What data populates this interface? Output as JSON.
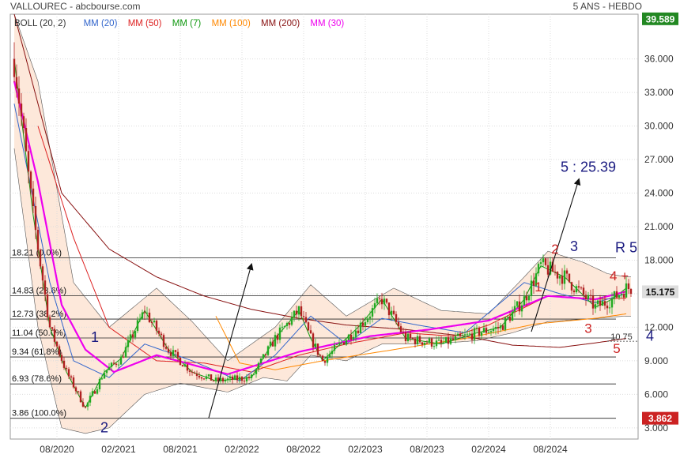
{
  "header": {
    "title": "VALLOUREC - abcbourse.com",
    "period": "5 ANS - HEBDO"
  },
  "legend": [
    {
      "label": "BOLL (20, 2)",
      "color": "#333333"
    },
    {
      "label": "MM (20)",
      "color": "#3366cc"
    },
    {
      "label": "MM (50)",
      "color": "#dd2222"
    },
    {
      "label": "MM (7)",
      "color": "#119911"
    },
    {
      "label": "MM (100)",
      "color": "#ff8800"
    },
    {
      "label": "MM (200)",
      "color": "#881111"
    },
    {
      "label": "MM (30)",
      "color": "#ee00ee"
    }
  ],
  "price_labels": {
    "high": "39.589",
    "last": "15.175",
    "low": "3.862"
  },
  "colors": {
    "bull": "#22aa22",
    "bear": "#b02020",
    "bollinger_fill": "#fde4d4",
    "high_badge": "#228822",
    "last_badge": "#dddddd",
    "low_badge": "#cc2222",
    "fib": "#222222"
  },
  "chart_data": {
    "type": "candlestick",
    "title": "VALLOUREC - abcbourse.com",
    "subtitle": "5 ANS - HEBDO",
    "x_ticks": [
      "08/2020",
      "02/2021",
      "08/2021",
      "02/2022",
      "08/2022",
      "02/2023",
      "08/2023",
      "02/2024",
      "08/2024"
    ],
    "y_ticks": [
      "3.000",
      "6.000",
      "9.000",
      "12.000",
      "15.000",
      "18.000",
      "21.000",
      "24.000",
      "27.000",
      "30.000",
      "33.000",
      "36.000"
    ],
    "ylim": [
      2,
      40
    ],
    "fib_levels": [
      {
        "label": "18.21  (0.0%)",
        "value": 18.21
      },
      {
        "label": "14.83  (23.6%)",
        "value": 14.83
      },
      {
        "label": "12.73  (38.2%)",
        "value": 12.73
      },
      {
        "label": "11.04  (50.0%)",
        "value": 11.04
      },
      {
        "label": "9.34  (61.8%)",
        "value": 9.34
      },
      {
        "label": "6.93  (78.6%)",
        "value": 6.93
      },
      {
        "label": "3.86  (100.0%)",
        "value": 3.86
      }
    ],
    "price_axis_labels": {
      "high": 39.589,
      "last": 15.175,
      "low": 3.862
    },
    "ma_anchors": {
      "MM (30)": [
        [
          0,
          34
        ],
        [
          10,
          25
        ],
        [
          20,
          14
        ],
        [
          30,
          10
        ],
        [
          42,
          8
        ],
        [
          60,
          9.5
        ],
        [
          90,
          7.8
        ],
        [
          120,
          9.8
        ],
        [
          150,
          11.2
        ],
        [
          175,
          11.8
        ],
        [
          200,
          12.6
        ],
        [
          225,
          14.8
        ],
        [
          245,
          14.5
        ],
        [
          258,
          15.2
        ]
      ],
      "MM (20)": [
        [
          0,
          32
        ],
        [
          15,
          16
        ],
        [
          25,
          9
        ],
        [
          40,
          7.5
        ],
        [
          55,
          10.5
        ],
        [
          75,
          9
        ],
        [
          95,
          7.2
        ],
        [
          110,
          9.5
        ],
        [
          125,
          13
        ],
        [
          140,
          10.5
        ],
        [
          155,
          12.8
        ],
        [
          170,
          12.2
        ],
        [
          190,
          11.5
        ],
        [
          215,
          16
        ],
        [
          230,
          15
        ],
        [
          245,
          14.2
        ],
        [
          258,
          15
        ]
      ],
      "MM (50)": [
        [
          10,
          30
        ],
        [
          25,
          20
        ],
        [
          40,
          12
        ],
        [
          60,
          9
        ],
        [
          80,
          8.8
        ],
        [
          100,
          8
        ],
        [
          120,
          9.5
        ],
        [
          140,
          10.5
        ],
        [
          165,
          11.5
        ],
        [
          185,
          11.2
        ],
        [
          200,
          12.2
        ],
        [
          225,
          14.8
        ],
        [
          245,
          14.5
        ],
        [
          258,
          14.6
        ]
      ],
      "MM (7)": [
        [
          0,
          36
        ],
        [
          8,
          22
        ],
        [
          15,
          12
        ],
        [
          22,
          8
        ],
        [
          30,
          4.8
        ],
        [
          38,
          8
        ],
        [
          45,
          9.2
        ],
        [
          55,
          13.5
        ],
        [
          65,
          10
        ],
        [
          75,
          8
        ],
        [
          85,
          7.2
        ],
        [
          100,
          7.5
        ],
        [
          110,
          11
        ],
        [
          120,
          13.5
        ],
        [
          125,
          11
        ],
        [
          130,
          9
        ],
        [
          145,
          12
        ],
        [
          155,
          14.5
        ],
        [
          165,
          11
        ],
        [
          180,
          10.5
        ],
        [
          195,
          11.5
        ],
        [
          205,
          12
        ],
        [
          215,
          14.5
        ],
        [
          222,
          17.5
        ],
        [
          232,
          16.5
        ],
        [
          245,
          13.8
        ],
        [
          252,
          14.5
        ],
        [
          258,
          15.5
        ]
      ],
      "MM (100)": [
        [
          85,
          13
        ],
        [
          95,
          8.8
        ],
        [
          110,
          8.2
        ],
        [
          130,
          9
        ],
        [
          160,
          10
        ],
        [
          190,
          11
        ],
        [
          220,
          12.3
        ],
        [
          245,
          12.8
        ],
        [
          258,
          13.2
        ]
      ],
      "MM (200)": [
        [
          0,
          40
        ],
        [
          20,
          24
        ],
        [
          40,
          19
        ],
        [
          60,
          16.5
        ],
        [
          80,
          14.8
        ],
        [
          100,
          13.6
        ],
        [
          120,
          12.8
        ],
        [
          140,
          12.2
        ],
        [
          165,
          11.8
        ],
        [
          190,
          11.2
        ],
        [
          210,
          10.4
        ],
        [
          230,
          10.2
        ],
        [
          245,
          10.6
        ],
        [
          258,
          11
        ]
      ],
      "BOLL upper": [
        [
          0,
          40
        ],
        [
          10,
          34
        ],
        [
          25,
          16
        ],
        [
          40,
          12
        ],
        [
          60,
          15.5
        ],
        [
          75,
          12.5
        ],
        [
          90,
          9
        ],
        [
          110,
          12
        ],
        [
          125,
          15.8
        ],
        [
          140,
          13
        ],
        [
          160,
          15.5
        ],
        [
          180,
          13.5
        ],
        [
          200,
          13.2
        ],
        [
          215,
          16.5
        ],
        [
          225,
          18.8
        ],
        [
          240,
          17.8
        ],
        [
          250,
          16.8
        ],
        [
          258,
          16.5
        ]
      ],
      "BOLL lower": [
        [
          0,
          28
        ],
        [
          10,
          12
        ],
        [
          20,
          3
        ],
        [
          30,
          2.5
        ],
        [
          40,
          3
        ],
        [
          55,
          6
        ],
        [
          70,
          7
        ],
        [
          90,
          6.2
        ],
        [
          105,
          7.5
        ],
        [
          115,
          7.2
        ],
        [
          125,
          9.5
        ],
        [
          140,
          9
        ],
        [
          155,
          10.5
        ],
        [
          175,
          10.5
        ],
        [
          195,
          10.8
        ],
        [
          210,
          11.5
        ],
        [
          225,
          12.5
        ],
        [
          245,
          12.8
        ],
        [
          258,
          13
        ]
      ]
    },
    "trend_arrows": [
      {
        "from": [
          82,
          3.9
        ],
        "to": [
          100,
          17.6
        ]
      },
      {
        "from": [
          218,
          11.6
        ],
        "to": [
          238,
          25.2
        ]
      }
    ],
    "annotations": [
      {
        "text": "5 : 25.39",
        "x": 242,
        "y": 25.9
      },
      {
        "text": "2",
        "x": 228,
        "y": 18.6
      },
      {
        "text": "3",
        "x": 236,
        "y": 18.8
      },
      {
        "text": "R 5",
        "x": 258,
        "y": 18.7
      },
      {
        "text": "1",
        "x": 221,
        "y": 15.2
      },
      {
        "text": "4 +",
        "x": 255,
        "y": 16.2
      },
      {
        "text": "3",
        "x": 242,
        "y": 11.5
      },
      {
        "text": "10.75",
        "x": 256,
        "y": 10.9
      },
      {
        "text": "4",
        "x": 268,
        "y": 10.8
      },
      {
        "text": "5",
        "x": 254,
        "y": 9.7
      },
      {
        "text": "1",
        "x": 34,
        "y": 10.7
      },
      {
        "text": "2",
        "x": 38,
        "y": 2.6
      }
    ]
  }
}
